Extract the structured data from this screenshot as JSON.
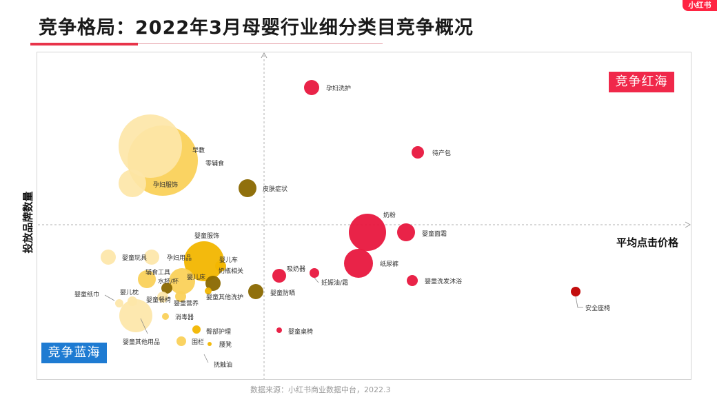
{
  "header": {
    "title": "竞争格局：2022年3月母婴行业细分类目竞争概况",
    "corner_badge": "小红书"
  },
  "quadrants": {
    "red_sea_label": "竞争红海",
    "blue_sea_label": "竞争蓝海"
  },
  "source_note": "数据来源：小红书商业数据中台，2022.3",
  "colors": {
    "red": "#e8173e",
    "dark_red": "#c00000",
    "gold": "#f2b600",
    "light_gold": "#fad15a",
    "pale_yellow": "#fde6a8",
    "olive": "#8a6800",
    "accent": "#ff2442",
    "blue": "#1e7bd2"
  },
  "chart_data": {
    "type": "scatter",
    "xlabel": "平均点击价格",
    "ylabel": "投放品牌数量",
    "points": [
      {
        "name": "孕妇洗护"
      },
      {
        "name": "待产包"
      },
      {
        "name": "皮肤症状"
      },
      {
        "name": "早教"
      },
      {
        "name": "零辅食"
      },
      {
        "name": "孕妇服饰"
      },
      {
        "name": "奶粉"
      },
      {
        "name": "婴童面霜"
      },
      {
        "name": "纸尿裤"
      },
      {
        "name": "吸奶器"
      },
      {
        "name": "妊娠油/霜"
      },
      {
        "name": "婴童洗发沐浴"
      },
      {
        "name": "安全座椅"
      },
      {
        "name": "婴童防晒"
      },
      {
        "name": "婴童桌椅"
      },
      {
        "name": "婴童服饰"
      },
      {
        "name": "婴儿车"
      },
      {
        "name": "奶瓶相关"
      },
      {
        "name": "婴童玩具"
      },
      {
        "name": "孕妇用品"
      },
      {
        "name": "辅食工具"
      },
      {
        "name": "水杯/杯"
      },
      {
        "name": "婴儿床"
      },
      {
        "name": "婴童餐椅"
      },
      {
        "name": "婴童营养"
      },
      {
        "name": "婴童其他洗护"
      },
      {
        "name": "婴儿枕"
      },
      {
        "name": "婴童纸巾"
      },
      {
        "name": "消毒器"
      },
      {
        "name": "婴童其他用品"
      },
      {
        "name": "臀部护理"
      },
      {
        "name": "围栏"
      },
      {
        "name": "腰凳"
      },
      {
        "name": "抚触油"
      }
    ]
  }
}
